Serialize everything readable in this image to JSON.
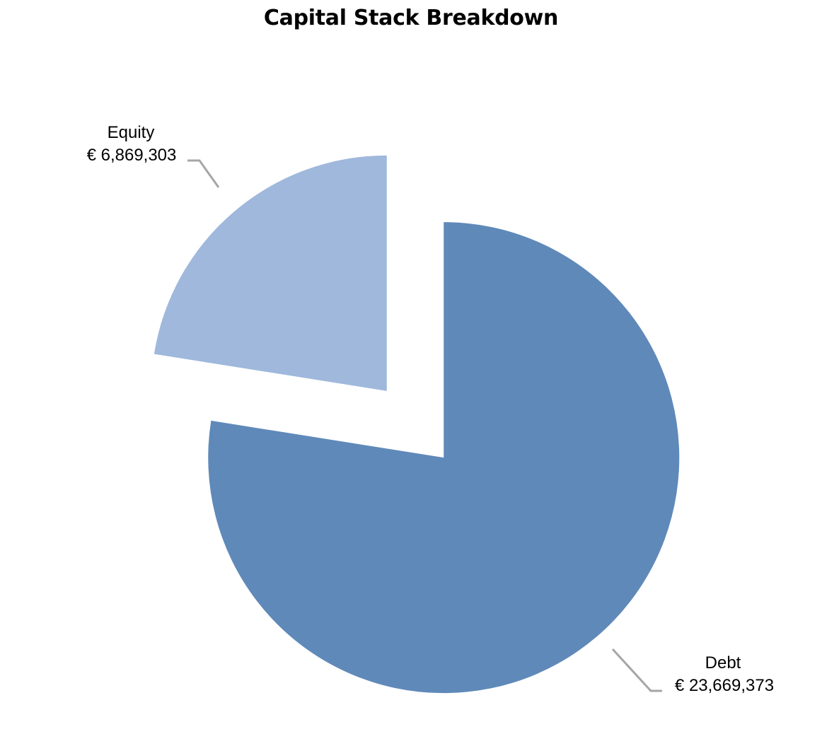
{
  "chart_data": {
    "type": "pie",
    "title": "Capital Stack Breakdown",
    "currency_symbol": "€",
    "slices": [
      {
        "label": "Debt",
        "value": 23669373,
        "value_text": "€ 23,669,373",
        "color": "#5f89b9",
        "exploded": true
      },
      {
        "label": "Equity",
        "value": 6869303,
        "value_text": "€ 6,869,303",
        "color": "#9fb8dc",
        "exploded": true
      }
    ],
    "leader_line_color": "#a6a6a6",
    "legend": "none",
    "start_angle": "12 o'clock, clockwise"
  }
}
